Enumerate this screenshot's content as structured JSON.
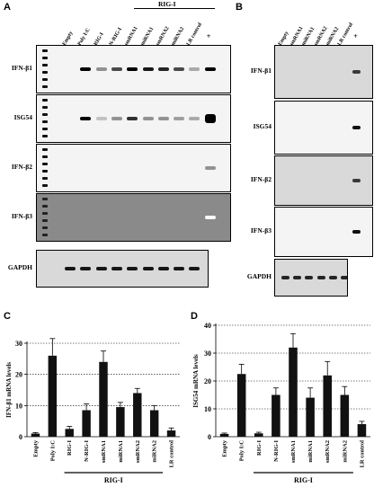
{
  "panels": {
    "A": "A",
    "B": "B",
    "C": "C",
    "D": "D"
  },
  "group_label": "RIG-I",
  "plus_label": "+",
  "panel_A": {
    "lanes": [
      "Empty",
      "Poly I:C",
      "RIG-I",
      "N-RIG-I",
      "smRNA1",
      "miRNA1",
      "smRNA2",
      "miRNA2",
      "LR control",
      "+"
    ],
    "rows": [
      "IFN-β1",
      "ISG54",
      "IFN-β2",
      "IFN-β3",
      "GAPDH"
    ]
  },
  "panel_B": {
    "lanes": [
      "Empty",
      "smRNA1",
      "miRNA1",
      "smRNA2",
      "miRNA2",
      "LR control",
      "+"
    ],
    "rows": [
      "IFN-β1",
      "ISG54",
      "IFN-β2",
      "IFN-β3",
      "GAPDH"
    ]
  },
  "chart_data": [
    {
      "type": "bar",
      "panel": "C",
      "categories": [
        "Empty",
        "Poly I:C",
        "RIG-I",
        "N-RIG-I",
        "smRNA1",
        "miRNA1",
        "smRNA2",
        "miRNA2",
        "LR control"
      ],
      "values": [
        1,
        26,
        2.5,
        8.5,
        24,
        9.5,
        14,
        8.5,
        2
      ],
      "errors": [
        0.3,
        5.5,
        0.8,
        2,
        3.5,
        1.5,
        1.5,
        1.5,
        0.8
      ],
      "ylabel": "IFN-β1 mRNA levels",
      "yticks": [
        0,
        10,
        20,
        30
      ],
      "ylim": [
        0,
        30
      ],
      "grid": "dashed-horizontal",
      "group_label": "RIG-I"
    },
    {
      "type": "bar",
      "panel": "D",
      "categories": [
        "Empty",
        "Poly I:C",
        "RIG-I",
        "N-RIG-I",
        "smRNA1",
        "miRNA1",
        "smRNA2",
        "miRNA2",
        "LR control"
      ],
      "values": [
        1,
        22.5,
        1.2,
        15,
        32,
        14,
        22,
        15,
        4.5
      ],
      "errors": [
        0.3,
        3.5,
        0.4,
        2.5,
        5,
        3.5,
        5,
        3,
        1
      ],
      "ylabel": "ISG54 mRNA levels",
      "yticks": [
        0,
        10,
        20,
        30,
        40
      ],
      "ylim": [
        0,
        40
      ],
      "grid": "dashed-horizontal",
      "group_label": "RIG-I"
    }
  ]
}
